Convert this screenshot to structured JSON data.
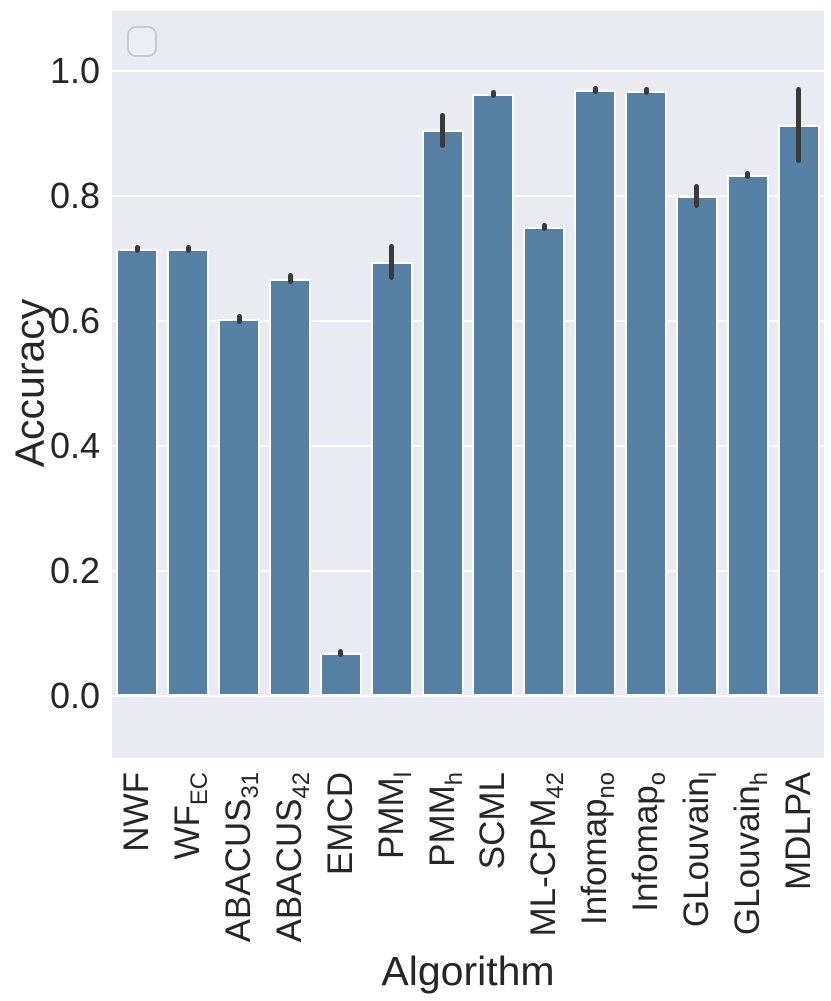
{
  "chart_data": {
    "type": "bar",
    "title": "",
    "xlabel": "Algorithm",
    "ylabel": "Accuracy",
    "ylim": [
      -0.1,
      1.1
    ],
    "grid": true,
    "legend": "empty legend box, top-left",
    "colors": {
      "bar": "#5681a4",
      "bar_edge": "#ffffff",
      "error_bar": "#3a3a3a",
      "plot_background": "#eaeaf2",
      "gridline": "#ffffff",
      "text": "#262626"
    },
    "ytick_values": [
      0.0,
      0.2,
      0.4,
      0.6,
      0.8,
      1.0
    ],
    "ytick_labels": [
      "0.0",
      "0.2",
      "0.4",
      "0.6",
      "0.8",
      "1.0"
    ],
    "categories": [
      "NWF",
      "WF_EC",
      "ABACUS_31",
      "ABACUS_42",
      "EMCD",
      "PMM_l",
      "PMM_h",
      "SCML",
      "ML-CPM_42",
      "Infomap_no",
      "Infomap_o",
      "GLouvain_l",
      "GLouvain_h",
      "MDLPA"
    ],
    "category_labels": [
      {
        "base": "NWF",
        "sub": ""
      },
      {
        "base": "WF",
        "sub": "EC"
      },
      {
        "base": "ABACUS",
        "sub": "31"
      },
      {
        "base": "ABACUS",
        "sub": "42"
      },
      {
        "base": "EMCD",
        "sub": ""
      },
      {
        "base": "PMM",
        "sub": "l"
      },
      {
        "base": "PMM",
        "sub": "h"
      },
      {
        "base": "SCML",
        "sub": ""
      },
      {
        "base": "ML-CPM",
        "sub": "42"
      },
      {
        "base": "Infomap",
        "sub": "no"
      },
      {
        "base": "Infomap",
        "sub": "o"
      },
      {
        "base": "GLouvain",
        "sub": "l"
      },
      {
        "base": "GLouvain",
        "sub": "h"
      },
      {
        "base": "MDLPA",
        "sub": ""
      }
    ],
    "values": [
      0.715,
      0.715,
      0.603,
      0.668,
      0.069,
      0.694,
      0.905,
      0.963,
      0.75,
      0.97,
      0.968,
      0.8,
      0.833,
      0.914
    ],
    "errors": [
      0.005,
      0.005,
      0.008,
      0.009,
      0.005,
      0.029,
      0.028,
      0.004,
      0.005,
      0.003,
      0.003,
      0.019,
      0.006,
      0.061
    ]
  }
}
